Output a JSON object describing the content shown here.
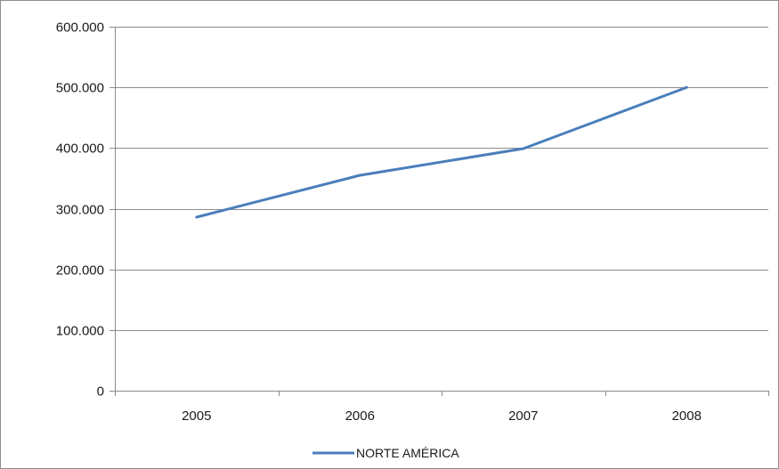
{
  "chart_data": {
    "type": "line",
    "title": "",
    "xlabel": "",
    "ylabel": "",
    "categories": [
      "2005",
      "2006",
      "2007",
      "2008"
    ],
    "series": [
      {
        "name": "NORTE AMÉRICA",
        "color": "#4a7ebb",
        "values": [
          286000,
          355000,
          399000,
          500000
        ]
      }
    ],
    "ylim": [
      0,
      600000
    ],
    "yticks": [
      0,
      100000,
      200000,
      300000,
      400000,
      500000,
      600000
    ],
    "ytick_labels": [
      "0",
      "100.000",
      "200.000",
      "300.000",
      "400.000",
      "500.000",
      "600.000"
    ],
    "grid": "horizontal",
    "legend_position": "bottom",
    "colors": {
      "gridline": "#8c8c8c",
      "axis": "#8c8c8c",
      "frame": "#8c8c8c"
    }
  }
}
